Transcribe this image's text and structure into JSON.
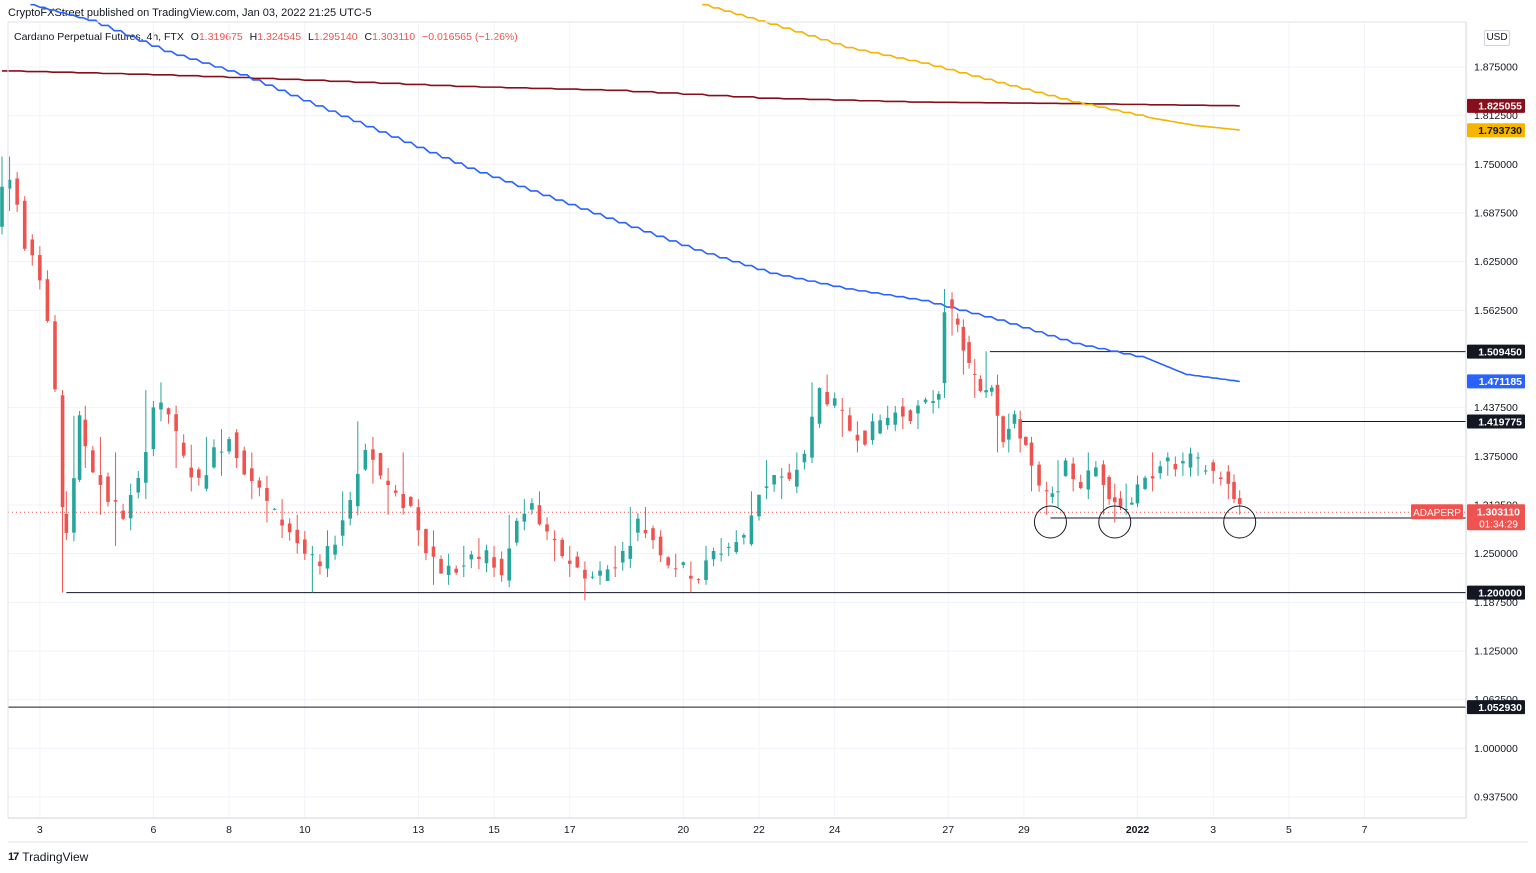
{
  "header": {
    "published": "CryptoFXStreet published on TradingView.com, Jan 03, 2022 21:25 UTC-5",
    "symbol_title": "Cardano Perpetual Futures, 4h, FTX",
    "ohlc": {
      "o_label": "O",
      "o": "1.319675",
      "h_label": "H",
      "h": "1.324545",
      "l_label": "L",
      "l": "1.295140",
      "c_label": "C",
      "c": "1.303110",
      "change": "−0.016565 (−1.26%)"
    }
  },
  "currency": "USD",
  "branding": {
    "logo": "17",
    "name": "TradingView"
  },
  "colors": {
    "up": "#26a69a",
    "down": "#ef5350",
    "blue_ma": "#2962ff",
    "yellow_ma": "#f5b400",
    "darkred_ma": "#880e1b",
    "level": "#131722"
  },
  "chart_data": {
    "type": "candlestick",
    "title": "Cardano Perpetual Futures, 4h, FTX",
    "timeframe": "4h",
    "y_range": [
      0.9,
      1.95
    ],
    "x_range_days": [
      "Dec 2 2021",
      "Jan 9 2022"
    ],
    "grid": true,
    "y_ticks": [
      "1.875000",
      "1.812500",
      "1.750000",
      "1.687500",
      "1.625000",
      "1.562500",
      "1.437500",
      "1.375000",
      "1.312500",
      "1.250000",
      "1.187500",
      "1.125000",
      "1.062500",
      "1.000000",
      "0.937500"
    ],
    "x_ticks": [
      {
        "label": "3",
        "day": 1
      },
      {
        "label": "6",
        "day": 4
      },
      {
        "label": "8",
        "day": 6
      },
      {
        "label": "10",
        "day": 8
      },
      {
        "label": "13",
        "day": 11
      },
      {
        "label": "15",
        "day": 13
      },
      {
        "label": "17",
        "day": 15
      },
      {
        "label": "20",
        "day": 18
      },
      {
        "label": "22",
        "day": 20
      },
      {
        "label": "24",
        "day": 22
      },
      {
        "label": "27",
        "day": 25
      },
      {
        "label": "29",
        "day": 27
      },
      {
        "label": "2022",
        "day": 30
      },
      {
        "label": "3",
        "day": 32
      },
      {
        "label": "5",
        "day": 34
      },
      {
        "label": "7",
        "day": 36
      }
    ],
    "price_tags": [
      {
        "value": 1.825055,
        "label": "1.825055",
        "color": "#880e1b"
      },
      {
        "value": 1.79373,
        "label": "1.793730",
        "color": "#f5b400"
      },
      {
        "value": 1.50945,
        "label": "1.509450",
        "color": "#131722"
      },
      {
        "value": 1.471185,
        "label": "1.471185",
        "color": "#2962ff"
      },
      {
        "value": 1.419775,
        "label": "1.419775",
        "color": "#131722"
      },
      {
        "value": 1.2958,
        "label": "1.295800",
        "color": "#131722"
      },
      {
        "value": 1.2,
        "label": "1.200000",
        "color": "#131722"
      },
      {
        "value": 1.05293,
        "label": "1.052930",
        "color": "#131722"
      }
    ],
    "current_price": {
      "symbol": "ADAPERP",
      "value": 1.30311,
      "label": "1.303110",
      "countdown": "01:34:29",
      "color": "#ef5350"
    },
    "horizontal_levels": [
      {
        "value": 1.50945,
        "from_day": 26.1
      },
      {
        "value": 1.419775,
        "from_day": 26.9
      },
      {
        "value": 1.2958,
        "from_day": 27.7
      },
      {
        "value": 1.2,
        "from_day": 1.7
      },
      {
        "value": 1.05293,
        "from_day": 0
      }
    ],
    "circles": [
      {
        "day": 27.7,
        "value": 1.2958
      },
      {
        "day": 29.4,
        "value": 1.2958
      },
      {
        "day": 32.7,
        "value": 1.2958
      }
    ],
    "ma_blue": [
      [
        0.75,
        1.955
      ],
      [
        2.3,
        1.935
      ],
      [
        4.3,
        1.895
      ],
      [
        6.3,
        1.865
      ],
      [
        8.3,
        1.825
      ],
      [
        10.3,
        1.785
      ],
      [
        12.3,
        1.745
      ],
      [
        14.3,
        1.71
      ],
      [
        16.3,
        1.675
      ],
      [
        18.3,
        1.64
      ],
      [
        20.3,
        1.61
      ],
      [
        22.3,
        1.59
      ],
      [
        24.3,
        1.575
      ],
      [
        26.3,
        1.55
      ],
      [
        28.3,
        1.52
      ],
      [
        30.3,
        1.5
      ],
      [
        31.3,
        1.48
      ],
      [
        32.7,
        1.471
      ]
    ],
    "ma_yellow": [
      [
        18.5,
        1.955
      ],
      [
        20.3,
        1.93
      ],
      [
        22.3,
        1.9
      ],
      [
        24.3,
        1.88
      ],
      [
        26.3,
        1.855
      ],
      [
        28.3,
        1.83
      ],
      [
        30.3,
        1.81
      ],
      [
        31.5,
        1.8
      ],
      [
        32.7,
        1.794
      ]
    ],
    "ma_darkred": [
      [
        0,
        1.87
      ],
      [
        4,
        1.865
      ],
      [
        8,
        1.858
      ],
      [
        12,
        1.85
      ],
      [
        16,
        1.845
      ],
      [
        20,
        1.835
      ],
      [
        24,
        1.83
      ],
      [
        28,
        1.828
      ],
      [
        32.7,
        1.825
      ]
    ],
    "price_path": [
      [
        0,
        1.67,
        1.76,
        1.66
      ],
      [
        0.2,
        1.72,
        1.76,
        1.69
      ],
      [
        0.4,
        1.73,
        1.74,
        1.69
      ],
      [
        0.6,
        1.7,
        1.7,
        1.64
      ],
      [
        0.8,
        1.65,
        1.66,
        1.62
      ],
      [
        1.0,
        1.64,
        1.64,
        1.6
      ],
      [
        1.2,
        1.61,
        1.61,
        1.55
      ],
      [
        1.4,
        1.55,
        1.55,
        1.46
      ],
      [
        1.6,
        1.46,
        1.46,
        1.2
      ],
      [
        1.7,
        1.3,
        1.33,
        1.27
      ],
      [
        1.9,
        1.28,
        1.43,
        1.28
      ],
      [
        2.2,
        1.42,
        1.44,
        1.36
      ],
      [
        2.6,
        1.36,
        1.4,
        1.3
      ],
      [
        3.0,
        1.32,
        1.38,
        1.26
      ],
      [
        3.4,
        1.3,
        1.34,
        1.28
      ],
      [
        3.8,
        1.34,
        1.46,
        1.32
      ],
      [
        4.2,
        1.44,
        1.47,
        1.42
      ],
      [
        4.6,
        1.43,
        1.44,
        1.36
      ],
      [
        5.0,
        1.37,
        1.39,
        1.33
      ],
      [
        5.4,
        1.34,
        1.4,
        1.33
      ],
      [
        5.8,
        1.38,
        1.41,
        1.35
      ],
      [
        6.2,
        1.4,
        1.41,
        1.36
      ],
      [
        6.6,
        1.36,
        1.38,
        1.32
      ],
      [
        7.0,
        1.33,
        1.35,
        1.29
      ],
      [
        7.4,
        1.3,
        1.32,
        1.27
      ],
      [
        7.8,
        1.28,
        1.3,
        1.25
      ],
      [
        8.2,
        1.25,
        1.26,
        1.2
      ],
      [
        8.6,
        1.23,
        1.28,
        1.22
      ],
      [
        9.0,
        1.27,
        1.33,
        1.26
      ],
      [
        9.4,
        1.32,
        1.42,
        1.31
      ],
      [
        9.8,
        1.39,
        1.4,
        1.34
      ],
      [
        10.2,
        1.35,
        1.36,
        1.3
      ],
      [
        10.6,
        1.32,
        1.38,
        1.3
      ],
      [
        11.0,
        1.31,
        1.32,
        1.26
      ],
      [
        11.4,
        1.26,
        1.28,
        1.21
      ],
      [
        11.8,
        1.23,
        1.25,
        1.21
      ],
      [
        12.2,
        1.23,
        1.26,
        1.22
      ],
      [
        12.6,
        1.24,
        1.27,
        1.23
      ],
      [
        13.0,
        1.25,
        1.26,
        1.22
      ],
      [
        13.4,
        1.22,
        1.3,
        1.21
      ],
      [
        13.8,
        1.29,
        1.32,
        1.28
      ],
      [
        14.2,
        1.31,
        1.33,
        1.29
      ],
      [
        14.6,
        1.27,
        1.28,
        1.24
      ],
      [
        15.0,
        1.25,
        1.26,
        1.22
      ],
      [
        15.4,
        1.23,
        1.24,
        1.19
      ],
      [
        15.8,
        1.22,
        1.24,
        1.21
      ],
      [
        16.2,
        1.23,
        1.26,
        1.22
      ],
      [
        16.6,
        1.25,
        1.31,
        1.24
      ],
      [
        17.0,
        1.29,
        1.31,
        1.27
      ],
      [
        17.4,
        1.27,
        1.28,
        1.24
      ],
      [
        17.8,
        1.24,
        1.25,
        1.22
      ],
      [
        18.2,
        1.23,
        1.24,
        1.2
      ],
      [
        18.6,
        1.22,
        1.26,
        1.21
      ],
      [
        19.0,
        1.25,
        1.27,
        1.24
      ],
      [
        19.4,
        1.26,
        1.28,
        1.25
      ],
      [
        19.8,
        1.27,
        1.33,
        1.26
      ],
      [
        20.2,
        1.33,
        1.37,
        1.32
      ],
      [
        20.6,
        1.35,
        1.36,
        1.32
      ],
      [
        21.0,
        1.34,
        1.38,
        1.33
      ],
      [
        21.4,
        1.38,
        1.47,
        1.37
      ],
      [
        21.8,
        1.46,
        1.48,
        1.44
      ],
      [
        22.2,
        1.44,
        1.45,
        1.4
      ],
      [
        22.6,
        1.41,
        1.42,
        1.38
      ],
      [
        23.0,
        1.4,
        1.43,
        1.39
      ],
      [
        23.4,
        1.42,
        1.44,
        1.41
      ],
      [
        23.8,
        1.43,
        1.45,
        1.41
      ],
      [
        24.2,
        1.43,
        1.44,
        1.41
      ],
      [
        24.6,
        1.44,
        1.46,
        1.43
      ],
      [
        24.9,
        1.46,
        1.59,
        1.45
      ],
      [
        25.1,
        1.57,
        1.58,
        1.53
      ],
      [
        25.4,
        1.54,
        1.55,
        1.48
      ],
      [
        25.7,
        1.49,
        1.5,
        1.45
      ],
      [
        26.0,
        1.46,
        1.51,
        1.45
      ],
      [
        26.3,
        1.47,
        1.48,
        1.38
      ],
      [
        26.6,
        1.4,
        1.43,
        1.38
      ],
      [
        26.9,
        1.42,
        1.43,
        1.38
      ],
      [
        27.2,
        1.39,
        1.4,
        1.33
      ],
      [
        27.6,
        1.33,
        1.34,
        1.3
      ],
      [
        27.9,
        1.32,
        1.37,
        1.31
      ],
      [
        28.3,
        1.36,
        1.37,
        1.33
      ],
      [
        28.7,
        1.34,
        1.38,
        1.32
      ],
      [
        29.1,
        1.36,
        1.37,
        1.3
      ],
      [
        29.4,
        1.33,
        1.34,
        1.29
      ],
      [
        29.7,
        1.31,
        1.34,
        1.3
      ],
      [
        30.0,
        1.32,
        1.35,
        1.31
      ],
      [
        30.4,
        1.34,
        1.38,
        1.33
      ],
      [
        30.8,
        1.37,
        1.38,
        1.35
      ],
      [
        31.2,
        1.36,
        1.38,
        1.35
      ],
      [
        31.6,
        1.37,
        1.38,
        1.35
      ],
      [
        32.0,
        1.36,
        1.37,
        1.34
      ],
      [
        32.4,
        1.35,
        1.36,
        1.32
      ],
      [
        32.7,
        1.32,
        1.33,
        1.3
      ]
    ]
  }
}
